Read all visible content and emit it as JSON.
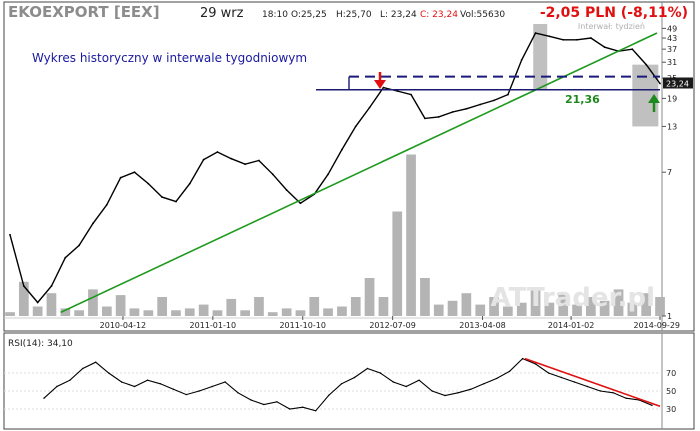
{
  "header": {
    "ticker": "EKOEXPORT [EEX]",
    "date": "29 wrz",
    "time": "18:10",
    "open": "O:25,25",
    "high": "H:25,70",
    "low": "L: 23,24",
    "close": "C: 23,24",
    "volume": "Vol:55630",
    "change": "-2,05 PLN (-8,11%)",
    "interval_note": "Interwał: tydzień"
  },
  "annotations": {
    "title_note": "Wykres historyczny w interwale tygodniowym",
    "level_label": "21,36",
    "last_price_tag": "23,24",
    "watermark": "ATTrader.pl"
  },
  "rsi": {
    "label": "RSI(14): 34,10",
    "ticks": [
      "70",
      "50",
      "30"
    ]
  },
  "colors": {
    "price": "#000000",
    "volume": "#b4b4b4",
    "trendline": "#1e9a1e",
    "level": "#1a1a6e",
    "dashed": "#1a1a7a",
    "change": "#e01010",
    "rsi_trend": "#e01010",
    "shade": "#8c8c8c"
  },
  "chart_data": {
    "type": "line",
    "scale": "log",
    "y_ticks": [
      49,
      43,
      37,
      31,
      25,
      19,
      13,
      7,
      1
    ],
    "ylim": [
      1,
      52
    ],
    "x_tick_labels": [
      "2010-04-12",
      "2011-01-10",
      "2011-10-10",
      "2012-07-09",
      "2013-04-08",
      "2014-01-02",
      "2014-09-29"
    ],
    "x_dates": [
      "2009-05-04",
      "2014-09-29"
    ],
    "price": {
      "x": [
        "2009-05-04",
        "2009-06-15",
        "2009-07-27",
        "2009-09-07",
        "2009-10-19",
        "2009-11-30",
        "2010-01-11",
        "2010-02-22",
        "2010-04-05",
        "2010-05-17",
        "2010-06-28",
        "2010-08-09",
        "2010-09-20",
        "2010-11-01",
        "2010-12-13",
        "2011-01-24",
        "2011-03-07",
        "2011-04-18",
        "2011-05-30",
        "2011-07-11",
        "2011-08-22",
        "2011-10-03",
        "2011-11-14",
        "2011-12-26",
        "2012-02-06",
        "2012-03-19",
        "2012-04-30",
        "2012-06-11",
        "2012-07-23",
        "2012-09-03",
        "2012-10-15",
        "2012-11-26",
        "2013-01-07",
        "2013-02-18",
        "2013-04-01",
        "2013-05-13",
        "2013-06-24",
        "2013-08-05",
        "2013-09-16",
        "2013-10-28",
        "2013-12-09",
        "2014-01-20",
        "2014-03-03",
        "2014-04-14",
        "2014-05-26",
        "2014-07-07",
        "2014-08-18",
        "2014-09-29"
      ],
      "y": [
        3.0,
        1.5,
        1.2,
        1.5,
        2.2,
        2.6,
        3.5,
        4.5,
        6.5,
        7.0,
        6.0,
        5.0,
        4.7,
        6.0,
        8.3,
        9.2,
        8.4,
        7.8,
        8.2,
        6.8,
        5.5,
        4.6,
        5.2,
        6.8,
        9.5,
        13.0,
        16.8,
        22.0,
        21.0,
        20.0,
        14.5,
        14.8,
        15.8,
        16.5,
        17.5,
        18.5,
        20.0,
        32.0,
        46.0,
        44.0,
        42.0,
        42.0,
        43.0,
        38.0,
        36.0,
        37.0,
        30.0,
        23.24
      ]
    },
    "volume_ratio": [
      0.02,
      0.18,
      0.05,
      0.12,
      0.04,
      0.03,
      0.14,
      0.05,
      0.11,
      0.04,
      0.03,
      0.1,
      0.03,
      0.04,
      0.06,
      0.03,
      0.09,
      0.03,
      0.1,
      0.02,
      0.04,
      0.03,
      0.1,
      0.04,
      0.05,
      0.1,
      0.2,
      0.1,
      0.55,
      0.85,
      0.2,
      0.06,
      0.08,
      0.12,
      0.06,
      0.1,
      0.05,
      0.07,
      0.14,
      0.07,
      0.12,
      0.06,
      0.1,
      0.08,
      0.14,
      0.07,
      0.12,
      0.1
    ],
    "levels": {
      "solid": 21.36,
      "dashed": 25.5
    },
    "rsi_values": [
      42,
      55,
      62,
      75,
      82,
      70,
      60,
      55,
      62,
      58,
      52,
      46,
      50,
      55,
      60,
      48,
      40,
      35,
      38,
      30,
      32,
      28,
      45,
      58,
      65,
      75,
      70,
      60,
      55,
      62,
      50,
      45,
      48,
      52,
      58,
      64,
      72,
      86,
      80,
      70,
      65,
      60,
      55,
      50,
      48,
      42,
      40,
      34
    ]
  }
}
